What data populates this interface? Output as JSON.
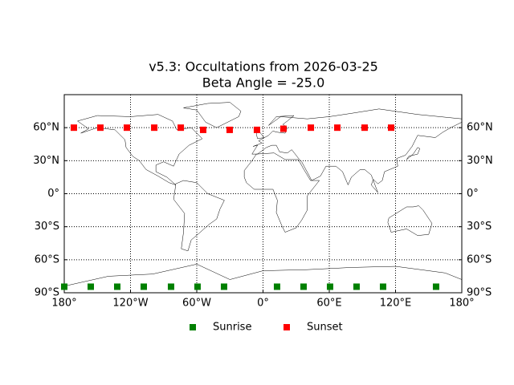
{
  "chart_data": {
    "type": "scatter",
    "title": "v5.3: Occultations from 2026-03-25",
    "subtitle": "Beta Angle = -25.0",
    "xlim": [
      -180,
      180
    ],
    "ylim": [
      -90,
      90
    ],
    "xticks": [
      {
        "value": -180,
        "label": "180°"
      },
      {
        "value": -120,
        "label": "120°W"
      },
      {
        "value": -60,
        "label": "60°W"
      },
      {
        "value": 0,
        "label": "0°"
      },
      {
        "value": 60,
        "label": "60°E"
      },
      {
        "value": 120,
        "label": "120°E"
      },
      {
        "value": 180,
        "label": "180°"
      }
    ],
    "yticks": [
      {
        "value": -90,
        "label": "90°S"
      },
      {
        "value": -60,
        "label": "60°S"
      },
      {
        "value": -30,
        "label": "30°S"
      },
      {
        "value": 0,
        "label": "0°"
      },
      {
        "value": 30,
        "label": "30°N"
      },
      {
        "value": 60,
        "label": "60°N"
      }
    ],
    "grid": true,
    "legend": "lower center",
    "series": [
      {
        "name": "Sunrise",
        "color": "#008000",
        "x": [
          -180,
          -156,
          -132,
          -108,
          -83.3,
          -59.3,
          -35.3,
          12.7,
          36.7,
          60.7,
          84.7,
          108.7,
          156.7
        ],
        "values": [
          -84.5,
          -84.5,
          -84.5,
          -84.5,
          -84.5,
          -84.5,
          -84.5,
          -84.5,
          -84.5,
          -84.5,
          -84.5,
          -84.5,
          -84.5
        ]
      },
      {
        "name": "Sunset",
        "color": "#ff0000",
        "x": [
          -171.3,
          -147.3,
          -123.3,
          -98.5,
          -74.5,
          -54.2,
          -30.2,
          -5.5,
          18.5,
          43.3,
          67.3,
          92,
          116
        ],
        "values": [
          60,
          60,
          60,
          60,
          60,
          58,
          58,
          58,
          59,
          60,
          60,
          60,
          60
        ]
      }
    ]
  }
}
